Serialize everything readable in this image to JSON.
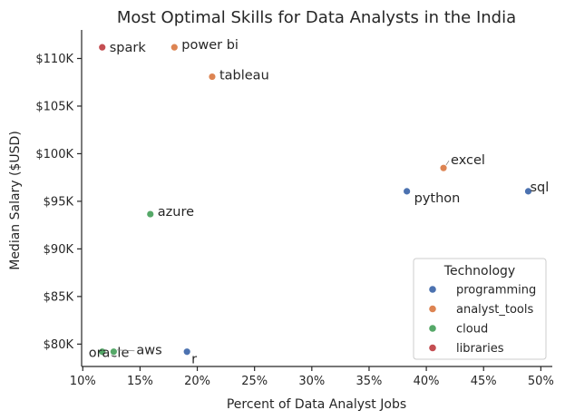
{
  "chart_data": {
    "type": "scatter",
    "title": "Most Optimal Skills for Data Analysts in the India",
    "xlabel": "Percent of Data Analyst Jobs",
    "ylabel": "Median Salary ($USD)",
    "xlim": [
      9.9,
      51.0
    ],
    "ylim": [
      77650,
      113000
    ],
    "x_ticks": [
      10,
      15,
      20,
      25,
      30,
      35,
      40,
      45,
      50
    ],
    "x_tick_labels": [
      "10%",
      "15%",
      "20%",
      "25%",
      "30%",
      "35%",
      "40%",
      "45%",
      "50%"
    ],
    "y_ticks": [
      80000,
      85000,
      90000,
      95000,
      100000,
      105000,
      110000
    ],
    "y_tick_labels": [
      "$80K",
      "$85K",
      "$90K",
      "$95K",
      "$100K",
      "$105K",
      "$110K"
    ],
    "grid": false,
    "legend": {
      "title": "Technology",
      "placement": "lower-right",
      "entries": [
        {
          "name": "programming",
          "color": "#4c72b0"
        },
        {
          "name": "analyst_tools",
          "color": "#dd8452"
        },
        {
          "name": "cloud",
          "color": "#55a868"
        },
        {
          "name": "libraries",
          "color": "#c44e52"
        }
      ]
    },
    "points": [
      {
        "label": "spark",
        "x": 11.7,
        "y": 111175,
        "category": "libraries"
      },
      {
        "label": "power bi",
        "x": 18.0,
        "y": 111175,
        "category": "analyst_tools"
      },
      {
        "label": "tableau",
        "x": 21.3,
        "y": 108087,
        "category": "analyst_tools"
      },
      {
        "label": "excel",
        "x": 41.5,
        "y": 98500,
        "category": "analyst_tools"
      },
      {
        "label": "sql",
        "x": 48.9,
        "y": 96050,
        "category": "programming"
      },
      {
        "label": "python",
        "x": 38.3,
        "y": 96050,
        "category": "programming"
      },
      {
        "label": "azure",
        "x": 15.9,
        "y": 93650,
        "category": "cloud"
      },
      {
        "label": "oracle",
        "x": 11.7,
        "y": 79200,
        "category": "cloud"
      },
      {
        "label": "aws",
        "x": 12.7,
        "y": 79200,
        "category": "cloud"
      },
      {
        "label": "r",
        "x": 19.1,
        "y": 79200,
        "category": "programming"
      }
    ]
  }
}
